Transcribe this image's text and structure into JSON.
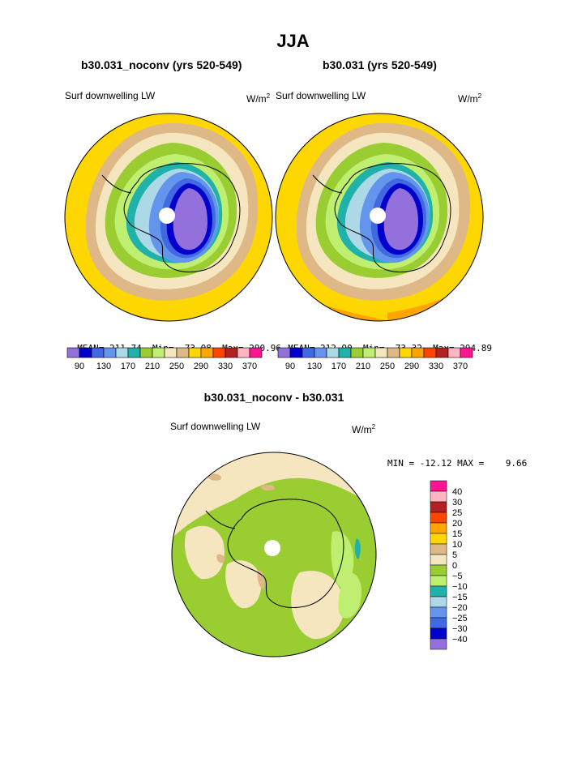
{
  "page": {
    "season_title": "JJA"
  },
  "panel_left": {
    "case": "b30.031_noconv (yrs 520-549)",
    "variable": "Surf downwelling LW",
    "units_base": "W/m",
    "units_exp": "2",
    "stats": {
      "mean_label": "MEAN=",
      "mean": "211.74",
      "min_label": "Min=",
      "min": "73.08",
      "max_label": "Max=",
      "max": "290.96"
    }
  },
  "panel_right": {
    "case": "b30.031 (yrs 520-549)",
    "variable": "Surf downwelling LW",
    "units_base": "W/m",
    "units_exp": "2",
    "stats": {
      "mean_label": "MEAN=",
      "mean": "212.90",
      "min_label": "Min=",
      "min": "73.32",
      "max_label": "Max=",
      "max": "294.89"
    }
  },
  "panel_diff": {
    "case": "b30.031_noconv - b30.031",
    "variable": "Surf downwelling LW",
    "units_base": "W/m",
    "units_exp": "2",
    "stats_line": "MIN = -12.12 MAX =    9.66"
  },
  "colorbar_top": {
    "colors": [
      "#9370db",
      "#0000cd",
      "#4169e1",
      "#6495ed",
      "#add8e6",
      "#20b2aa",
      "#9acd32",
      "#bfef70",
      "#f5e6c0",
      "#deb887",
      "#ffd700",
      "#ffa500",
      "#ff4500",
      "#b22222",
      "#ffb6c1",
      "#ff1493"
    ],
    "labels": [
      "90",
      "130",
      "170",
      "210",
      "250",
      "290",
      "330",
      "370"
    ]
  },
  "colorbar_diff": {
    "colors": [
      "#ff1493",
      "#ffb6c1",
      "#b22222",
      "#ff4500",
      "#ffa500",
      "#ffd700",
      "#deb887",
      "#f5e6c0",
      "#9acd32",
      "#bfef70",
      "#20b2aa",
      "#add8e6",
      "#6495ed",
      "#4169e1",
      "#0000cd",
      "#9370db"
    ],
    "labels": [
      "40",
      "30",
      "25",
      "20",
      "15",
      "10",
      "5",
      "0",
      "−5",
      "−10",
      "−15",
      "−20",
      "−25",
      "−30",
      "−40"
    ]
  }
}
